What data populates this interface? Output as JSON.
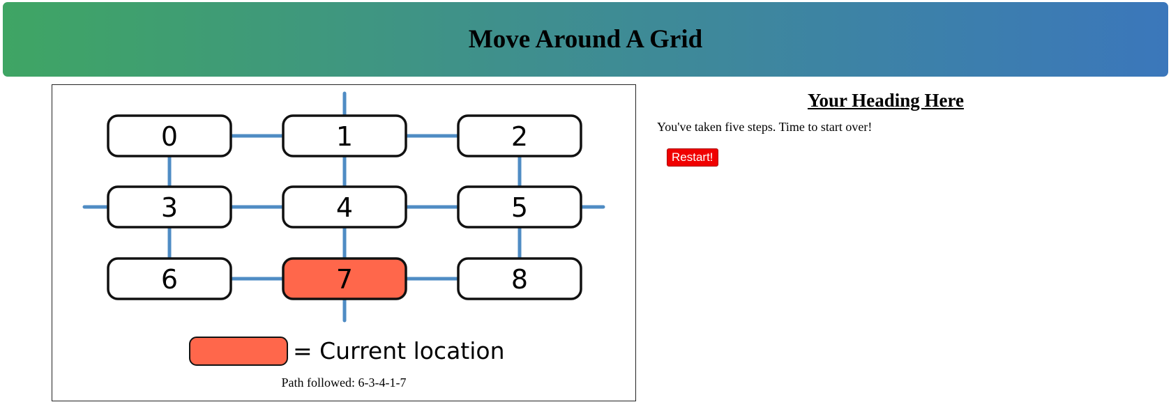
{
  "header": {
    "title": "Move Around A Grid"
  },
  "grid": {
    "cells": [
      "0",
      "1",
      "2",
      "3",
      "4",
      "5",
      "6",
      "7",
      "8"
    ],
    "current_cell": "7",
    "current_color": "#ff674b",
    "line_color": "#4f8cc4",
    "legend_label": "= Current location"
  },
  "path": {
    "text": "Path followed: 6-3-4-1-7"
  },
  "side": {
    "heading": "Your Heading Here",
    "message": "You've taken five steps. Time to start over!",
    "restart_label": "Restart!"
  }
}
